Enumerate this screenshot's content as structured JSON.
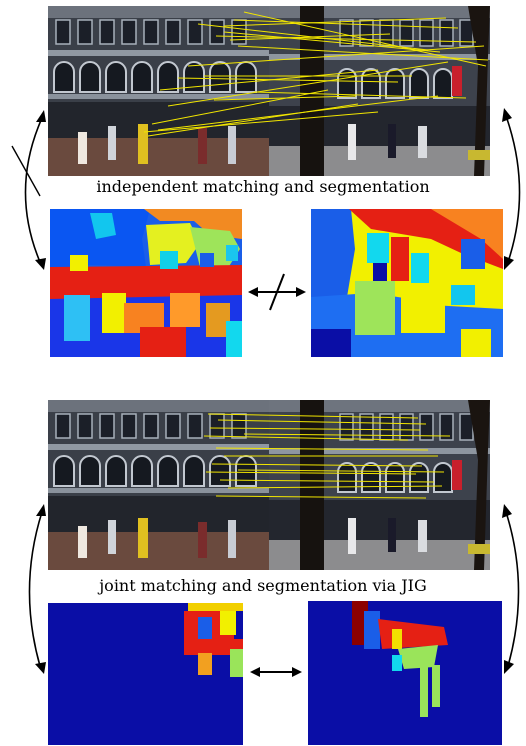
{
  "figure": {
    "top_caption": "independent matching and segmentation",
    "bottom_caption": "joint matching and segmentation via JIG"
  },
  "colors": {
    "match_line": "#f2e600",
    "seg_blue": "#0a0ea6",
    "seg_red": "#e51c10",
    "seg_yellow": "#f2f000",
    "seg_cyan": "#12d8ee",
    "seg_orange": "#f88220",
    "seg_green": "#9ae45a",
    "seg_lightblue": "#2a7cf2",
    "seg_darkred": "#8c0000"
  }
}
